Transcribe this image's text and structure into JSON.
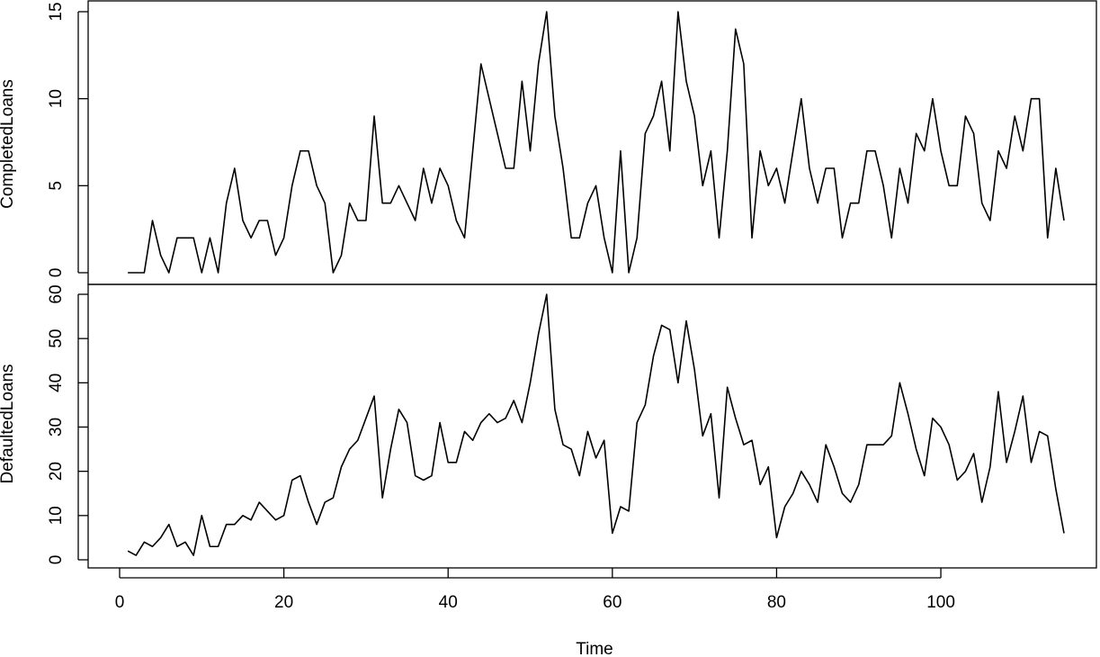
{
  "chart_data": [
    {
      "type": "line",
      "panel": "top",
      "ylabel": "CompletedLoans",
      "ylim": [
        0,
        15
      ],
      "yticks": [
        0,
        5,
        10,
        15
      ],
      "grid": false,
      "x": [
        1,
        2,
        3,
        4,
        5,
        6,
        7,
        8,
        9,
        10,
        11,
        12,
        13,
        14,
        15,
        16,
        17,
        18,
        19,
        20,
        21,
        22,
        23,
        24,
        25,
        26,
        27,
        28,
        29,
        30,
        31,
        32,
        33,
        34,
        35,
        36,
        37,
        38,
        39,
        40,
        41,
        42,
        43,
        44,
        45,
        46,
        47,
        48,
        49,
        50,
        51,
        52,
        53,
        54,
        55,
        56,
        57,
        58,
        59,
        60,
        61,
        62,
        63,
        64,
        65,
        66,
        67,
        68,
        69,
        70,
        71,
        72,
        73,
        74,
        75,
        76,
        77,
        78,
        79,
        80,
        81,
        82,
        83,
        84,
        85,
        86,
        87,
        88,
        89,
        90,
        91,
        92,
        93,
        94,
        95,
        96,
        97,
        98,
        99,
        100,
        101,
        102,
        103,
        104,
        105,
        106,
        107,
        108,
        109,
        110,
        111,
        112,
        113,
        114,
        115
      ],
      "series": [
        {
          "values": [
            0,
            0,
            0,
            3,
            1,
            0,
            2,
            2,
            2,
            0,
            2,
            0,
            4,
            6,
            3,
            2,
            3,
            3,
            1,
            2,
            5,
            7,
            7,
            5,
            4,
            0,
            1,
            4,
            3,
            3,
            9,
            4,
            4,
            5,
            4,
            3,
            6,
            4,
            6,
            5,
            3,
            2,
            7,
            12,
            10,
            8,
            6,
            6,
            11,
            7,
            12,
            15,
            9,
            6,
            2,
            2,
            4,
            5,
            2,
            0,
            7,
            0,
            2,
            8,
            9,
            11,
            7,
            15,
            11,
            9,
            5,
            7,
            2,
            7,
            14,
            12,
            2,
            7,
            5,
            6,
            4,
            7,
            10,
            6,
            4,
            6,
            6,
            2,
            4,
            4,
            7,
            7,
            5,
            2,
            6,
            4,
            8,
            7,
            10,
            7,
            5,
            5,
            9,
            8,
            4,
            3,
            7,
            6,
            9,
            7,
            10,
            10,
            2,
            6,
            3
          ]
        }
      ]
    },
    {
      "type": "line",
      "panel": "bottom",
      "xlabel": "Time",
      "ylabel": "DefaultedLoans",
      "xlim": [
        0,
        115
      ],
      "ylim": [
        0,
        60
      ],
      "xticks": [
        0,
        20,
        40,
        60,
        80,
        100
      ],
      "yticks": [
        0,
        10,
        20,
        30,
        40,
        50,
        60
      ],
      "grid": false,
      "x": [
        1,
        2,
        3,
        4,
        5,
        6,
        7,
        8,
        9,
        10,
        11,
        12,
        13,
        14,
        15,
        16,
        17,
        18,
        19,
        20,
        21,
        22,
        23,
        24,
        25,
        26,
        27,
        28,
        29,
        30,
        31,
        32,
        33,
        34,
        35,
        36,
        37,
        38,
        39,
        40,
        41,
        42,
        43,
        44,
        45,
        46,
        47,
        48,
        49,
        50,
        51,
        52,
        53,
        54,
        55,
        56,
        57,
        58,
        59,
        60,
        61,
        62,
        63,
        64,
        65,
        66,
        67,
        68,
        69,
        70,
        71,
        72,
        73,
        74,
        75,
        76,
        77,
        78,
        79,
        80,
        81,
        82,
        83,
        84,
        85,
        86,
        87,
        88,
        89,
        90,
        91,
        92,
        93,
        94,
        95,
        96,
        97,
        98,
        99,
        100,
        101,
        102,
        103,
        104,
        105,
        106,
        107,
        108,
        109,
        110,
        111,
        112,
        113,
        114,
        115
      ],
      "series": [
        {
          "values": [
            2,
            1,
            4,
            3,
            5,
            8,
            3,
            4,
            1,
            10,
            3,
            3,
            8,
            8,
            10,
            9,
            13,
            11,
            9,
            10,
            18,
            19,
            13,
            8,
            13,
            14,
            21,
            25,
            27,
            32,
            37,
            14,
            25,
            34,
            31,
            19,
            18,
            19,
            31,
            22,
            22,
            29,
            27,
            31,
            33,
            31,
            32,
            36,
            31,
            40,
            51,
            60,
            34,
            26,
            25,
            19,
            29,
            23,
            27,
            6,
            12,
            11,
            31,
            35,
            46,
            53,
            52,
            40,
            54,
            43,
            28,
            33,
            14,
            39,
            32,
            26,
            27,
            17,
            21,
            5,
            12,
            15,
            20,
            17,
            13,
            26,
            21,
            15,
            13,
            17,
            26,
            26,
            26,
            28,
            40,
            33,
            25,
            19,
            32,
            30,
            26,
            18,
            20,
            24,
            13,
            21,
            38,
            22,
            29,
            37,
            22,
            29,
            28,
            16,
            6
          ]
        }
      ]
    }
  ]
}
